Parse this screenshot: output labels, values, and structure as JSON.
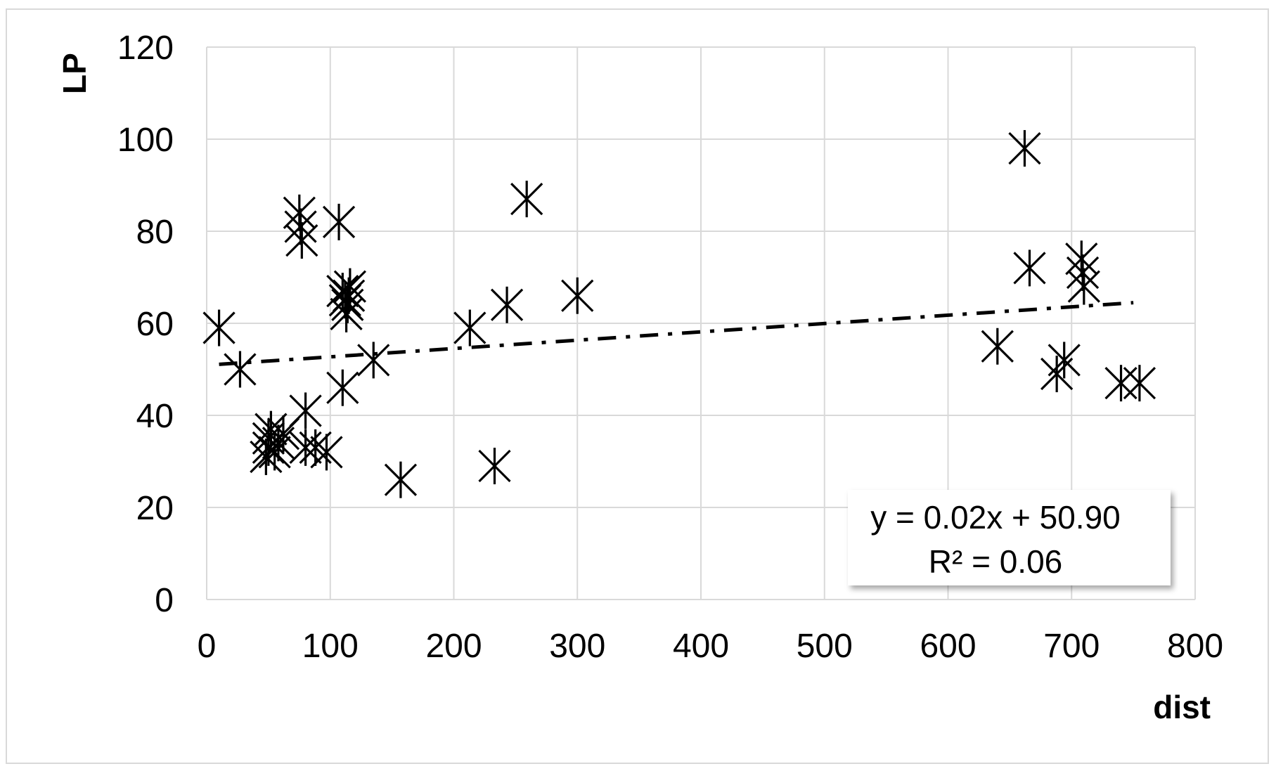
{
  "chart_data": {
    "type": "scatter",
    "title": "",
    "xlabel": "dist",
    "ylabel": "LP",
    "xlim": [
      0,
      800
    ],
    "ylim": [
      0,
      120
    ],
    "x_ticks": [
      "0",
      "100",
      "200",
      "300",
      "400",
      "500",
      "600",
      "700",
      "800"
    ],
    "y_ticks": [
      "0",
      "20",
      "40",
      "60",
      "80",
      "100",
      "120"
    ],
    "grid": true,
    "marker": "asterisk",
    "colors": {
      "marker": "#000000",
      "grid": "#d9d9d9",
      "trendline": "#000000"
    },
    "series": [
      {
        "points": [
          [
            10,
            59
          ],
          [
            27,
            50
          ],
          [
            48,
            31
          ],
          [
            50,
            33
          ],
          [
            50,
            35
          ],
          [
            52,
            37
          ],
          [
            55,
            32
          ],
          [
            58,
            34
          ],
          [
            62,
            36
          ],
          [
            75,
            84
          ],
          [
            76,
            81
          ],
          [
            77,
            78
          ],
          [
            80,
            41
          ],
          [
            80,
            33
          ],
          [
            88,
            33
          ],
          [
            97,
            32
          ],
          [
            107,
            82
          ],
          [
            110,
            46
          ],
          [
            110,
            67
          ],
          [
            112,
            65
          ],
          [
            113,
            62
          ],
          [
            114,
            64
          ],
          [
            115,
            66
          ],
          [
            116,
            68
          ],
          [
            135,
            52
          ],
          [
            157,
            26
          ],
          [
            213,
            59
          ],
          [
            233,
            29
          ],
          [
            243,
            64
          ],
          [
            259,
            87
          ],
          [
            300,
            66
          ],
          [
            640,
            55
          ],
          [
            662,
            98
          ],
          [
            666,
            72
          ],
          [
            688,
            49
          ],
          [
            694,
            52
          ],
          [
            708,
            74
          ],
          [
            709,
            71
          ],
          [
            710,
            68
          ],
          [
            740,
            47
          ],
          [
            755,
            47
          ]
        ]
      }
    ],
    "trendline": {
      "type": "linear",
      "x_range": [
        10,
        750
      ],
      "slope": 0.0181,
      "intercept": 50.9,
      "style": "dash-dot",
      "equation_label": "y = 0.02x + 50.90",
      "r2_label": "R² = 0.06"
    }
  }
}
